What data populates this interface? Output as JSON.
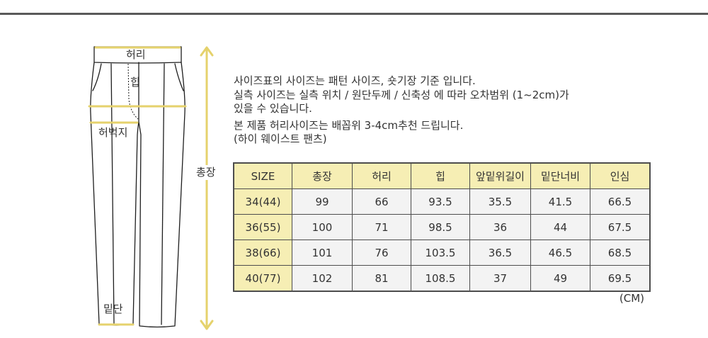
{
  "diagram": {
    "waist_label": "허리",
    "hip_label": "힙",
    "thigh_label": "허벅지",
    "hem_label": "밑단",
    "length_label": "총장"
  },
  "notes": [
    "사이즈표의 사이즈는 패턴 사이즈, 숏기장 기준 입니다.",
    "실측 사이즈는 실측 위치 / 원단두께 / 신축성 에 따라 오차범위 (1~2cm)가",
    "있을 수 있습니다.",
    "본 제품 허리사이즈는 배꼽위 3-4cm추천 드립니다.",
    "(하이 웨이스트 팬츠)"
  ],
  "size_table": {
    "headers": [
      "SIZE",
      "총장",
      "허리",
      "힙",
      "앞밑위길이",
      "밑단너비",
      "인심"
    ],
    "rows": [
      [
        "34(44)",
        "99",
        "66",
        "93.5",
        "35.5",
        "41.5",
        "66.5"
      ],
      [
        "36(55)",
        "100",
        "71",
        "98.5",
        "36",
        "44",
        "67.5"
      ],
      [
        "38(66)",
        "101",
        "76",
        "103.5",
        "36.5",
        "46.5",
        "68.5"
      ],
      [
        "40(77)",
        "102",
        "81",
        "108.5",
        "37",
        "49",
        "69.5"
      ]
    ],
    "unit": "(CM)"
  },
  "colors": {
    "measure_line": "#e5d26c",
    "header_fill": "#f6eeb4",
    "cell_fill": "#f3f3f3",
    "border": "#4d4d4d",
    "top_rule": "#595959"
  }
}
